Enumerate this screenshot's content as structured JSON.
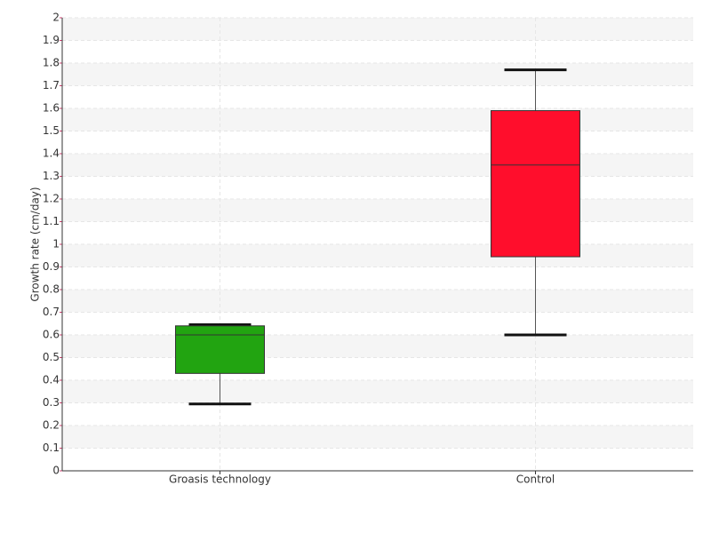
{
  "chart_data": {
    "type": "box",
    "y_label": "Growth rate (cm/day)",
    "categories": [
      "Groasis technology",
      "Control"
    ],
    "boxes": [
      {
        "min": 0.295,
        "q1": 0.43,
        "median": 0.6,
        "q3": 0.64,
        "max": 0.645,
        "color": "#22a411"
      },
      {
        "min": 0.6,
        "q1": 0.945,
        "median": 1.35,
        "q3": 1.59,
        "max": 1.77,
        "color": "#ff0e2c"
      }
    ],
    "ylim": [
      0,
      2
    ],
    "yticks": [
      0,
      0.1,
      0.2,
      0.3,
      0.4,
      0.5,
      0.6,
      0.7,
      0.8,
      0.9,
      1,
      1.1,
      1.2,
      1.3,
      1.4,
      1.5,
      1.6,
      1.7,
      1.8,
      1.9,
      2
    ],
    "grid": true
  }
}
